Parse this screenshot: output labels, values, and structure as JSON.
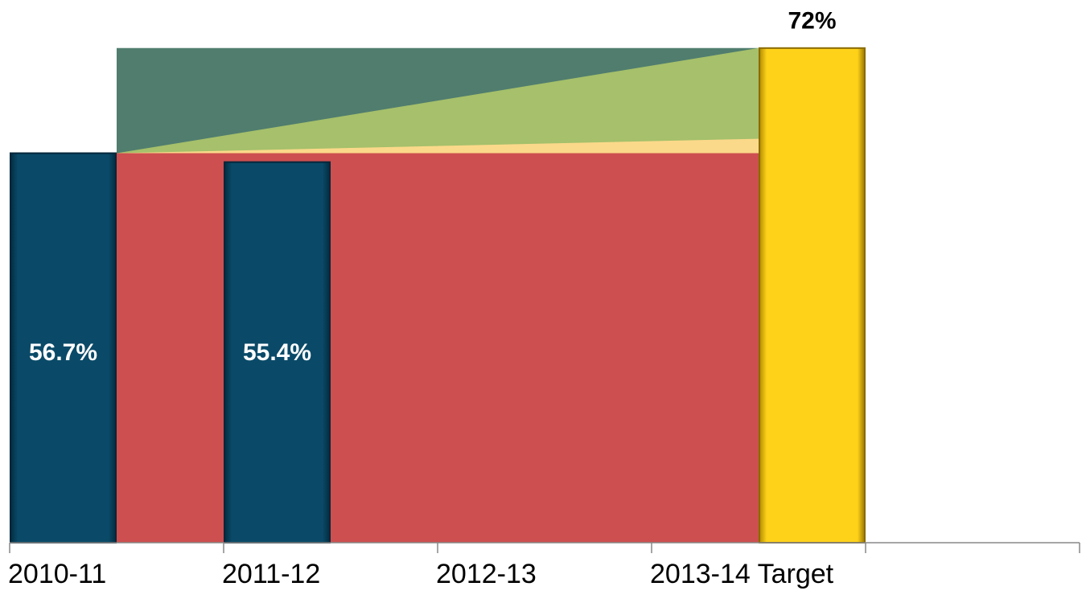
{
  "chart_data": {
    "type": "bar",
    "categories": [
      "2010-11",
      "2011-12",
      "2012-13",
      "2013-14 Target",
      null
    ],
    "series": [
      {
        "color": "#08435f",
        "values": [
          56.7,
          55.4,
          null,
          null,
          null
        ],
        "value_labels": [
          "56.7%",
          "55.4%",
          null,
          null,
          null
        ]
      },
      {
        "color": "#fdcb16",
        "values": [
          null,
          null,
          null,
          72,
          null
        ],
        "value_labels": [
          null,
          null,
          null,
          "72%",
          null
        ]
      }
    ],
    "areas": [
      {
        "color": "#507d6e",
        "values": [
          72,
          72
        ]
      },
      {
        "color": "#a6c06b",
        "values": [
          56.7,
          72
        ]
      },
      {
        "color": "#fbd98a",
        "values": [
          56.7,
          58.8
        ]
      },
      {
        "color": "#cd4f50",
        "values": [
          56.7,
          56.7
        ]
      }
    ],
    "ylim": [
      0,
      79
    ]
  }
}
